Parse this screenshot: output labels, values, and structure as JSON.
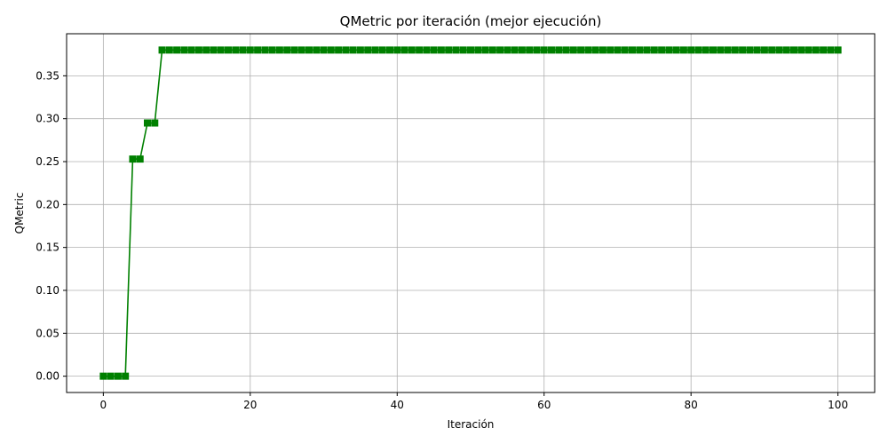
{
  "chart_data": {
    "type": "line",
    "title": "QMetric por iteración (mejor ejecución)",
    "xlabel": "Iteración",
    "ylabel": "QMetric",
    "xlim": [
      -5,
      105
    ],
    "ylim": [
      -0.019,
      0.399
    ],
    "xticks": [
      0,
      20,
      40,
      60,
      80,
      100
    ],
    "yticks": [
      0.0,
      0.05,
      0.1,
      0.15,
      0.2,
      0.25,
      0.3,
      0.35
    ],
    "ytick_labels": [
      "0.00",
      "0.05",
      "0.10",
      "0.15",
      "0.20",
      "0.25",
      "0.30",
      "0.35"
    ],
    "grid": true,
    "marker": "square",
    "series": [
      {
        "color": "#008000",
        "x": [
          0,
          1,
          2,
          3,
          4,
          5,
          6,
          7,
          8,
          9,
          10,
          11,
          12,
          13,
          14,
          15,
          16,
          17,
          18,
          19,
          20,
          21,
          22,
          23,
          24,
          25,
          26,
          27,
          28,
          29,
          30,
          31,
          32,
          33,
          34,
          35,
          36,
          37,
          38,
          39,
          40,
          41,
          42,
          43,
          44,
          45,
          46,
          47,
          48,
          49,
          50,
          51,
          52,
          53,
          54,
          55,
          56,
          57,
          58,
          59,
          60,
          61,
          62,
          63,
          64,
          65,
          66,
          67,
          68,
          69,
          70,
          71,
          72,
          73,
          74,
          75,
          76,
          77,
          78,
          79,
          80,
          81,
          82,
          83,
          84,
          85,
          86,
          87,
          88,
          89,
          90,
          91,
          92,
          93,
          94,
          95,
          96,
          97,
          98,
          99,
          100
        ],
        "y": [
          0.0,
          0.0,
          0.0,
          0.0,
          0.253,
          0.253,
          0.295,
          0.295,
          0.38,
          0.38,
          0.38,
          0.38,
          0.38,
          0.38,
          0.38,
          0.38,
          0.38,
          0.38,
          0.38,
          0.38,
          0.38,
          0.38,
          0.38,
          0.38,
          0.38,
          0.38,
          0.38,
          0.38,
          0.38,
          0.38,
          0.38,
          0.38,
          0.38,
          0.38,
          0.38,
          0.38,
          0.38,
          0.38,
          0.38,
          0.38,
          0.38,
          0.38,
          0.38,
          0.38,
          0.38,
          0.38,
          0.38,
          0.38,
          0.38,
          0.38,
          0.38,
          0.38,
          0.38,
          0.38,
          0.38,
          0.38,
          0.38,
          0.38,
          0.38,
          0.38,
          0.38,
          0.38,
          0.38,
          0.38,
          0.38,
          0.38,
          0.38,
          0.38,
          0.38,
          0.38,
          0.38,
          0.38,
          0.38,
          0.38,
          0.38,
          0.38,
          0.38,
          0.38,
          0.38,
          0.38,
          0.38,
          0.38,
          0.38,
          0.38,
          0.38,
          0.38,
          0.38,
          0.38,
          0.38,
          0.38,
          0.38,
          0.38,
          0.38,
          0.38,
          0.38,
          0.38,
          0.38,
          0.38,
          0.38,
          0.38,
          0.38
        ]
      }
    ]
  }
}
